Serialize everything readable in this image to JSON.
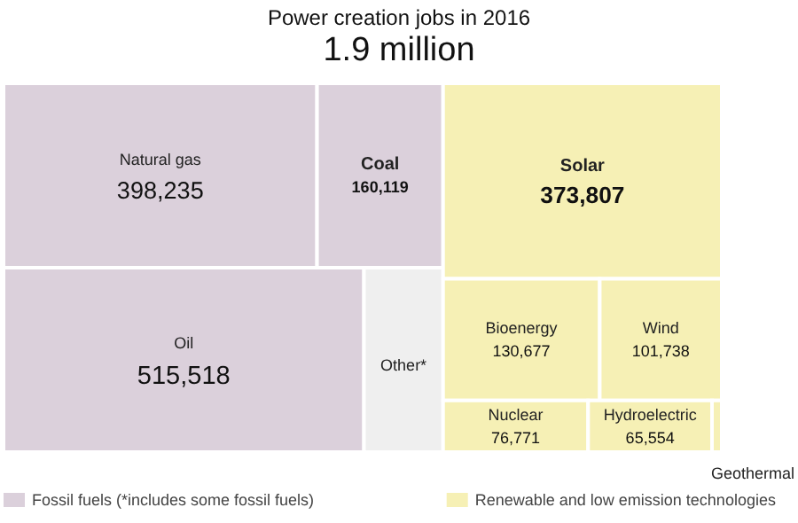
{
  "chart_data": {
    "type": "other",
    "title": "Power creation jobs in 2016",
    "subtitle": "1.9 million",
    "categories": [
      "Natural gas",
      "Coal",
      "Oil",
      "Other*",
      "Solar",
      "Bioenergy",
      "Wind",
      "Nuclear",
      "Hydroelectric",
      "Geothermal"
    ],
    "colors": [
      "#dbd0db",
      "#dbd0db",
      "#dbd0db",
      "#efefef",
      "#f6f0b5",
      "#f6f0b5",
      "#f6f0b5",
      "#f6f0b5",
      "#f6f0b5",
      "#f6f0b5"
    ],
    "series": [
      {
        "name": "Fossil fuels (*includes some fossil fuels)",
        "color": "#dbd0db",
        "values": [
          398235,
          160119,
          515518,
          null,
          null,
          null,
          null,
          null,
          null,
          null
        ],
        "value_labels": [
          "398,235",
          "160,119",
          "515,518",
          null,
          null,
          null,
          null,
          null,
          null,
          null
        ]
      },
      {
        "name": "Renewable and low emission technologies",
        "color": "#f6f0b5",
        "values": [
          null,
          null,
          null,
          null,
          373807,
          130677,
          101738,
          76771,
          65554,
          null
        ],
        "value_labels": [
          null,
          null,
          null,
          null,
          "373,807",
          "130,677",
          "101,738",
          "76,771",
          "65,554",
          null
        ]
      }
    ],
    "legend": "bottom"
  }
}
